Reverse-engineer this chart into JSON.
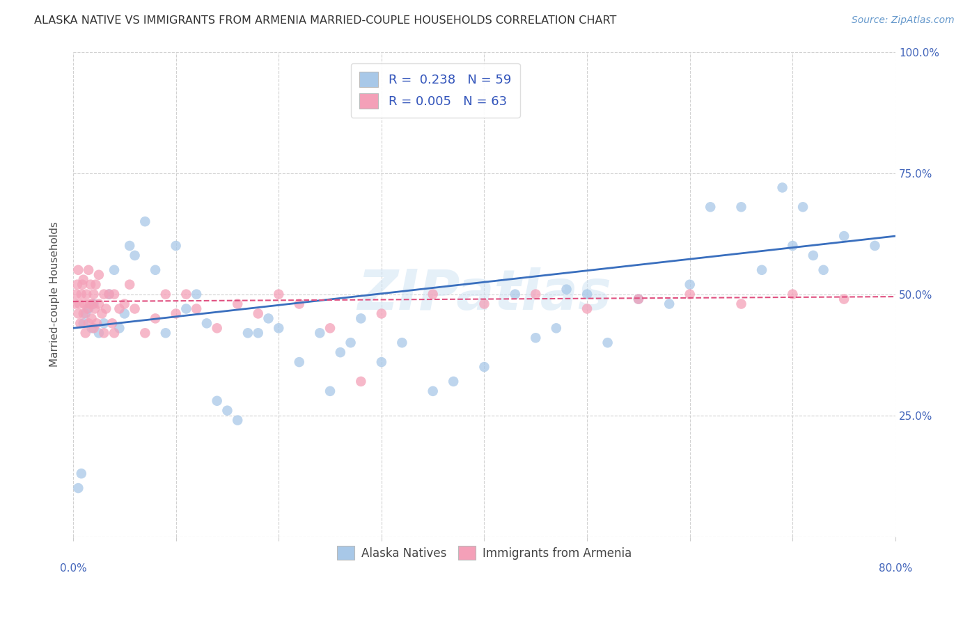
{
  "title": "ALASKA NATIVE VS IMMIGRANTS FROM ARMENIA MARRIED-COUPLE HOUSEHOLDS CORRELATION CHART",
  "source": "Source: ZipAtlas.com",
  "ylabel": "Married-couple Households",
  "legend1_label": "Alaska Natives",
  "legend2_label": "Immigrants from Armenia",
  "R1": 0.238,
  "N1": 59,
  "R2": 0.005,
  "N2": 63,
  "color_blue": "#a8c8e8",
  "color_pink": "#f4a0b8",
  "color_blue_line": "#3a6fbe",
  "color_pink_line": "#e05080",
  "watermark": "ZIPatlas",
  "xmin": 0.0,
  "xmax": 80.0,
  "ymin": 0.0,
  "ymax": 100.0,
  "blue_line_x0": 0.0,
  "blue_line_y0": 43.0,
  "blue_line_x1": 80.0,
  "blue_line_y1": 62.0,
  "pink_line_x0": 0.0,
  "pink_line_y0": 48.5,
  "pink_line_x1": 80.0,
  "pink_line_y1": 49.5,
  "blue_x": [
    0.5,
    0.8,
    1.0,
    1.2,
    1.5,
    1.8,
    2.0,
    2.5,
    3.0,
    3.5,
    4.0,
    4.5,
    5.0,
    5.5,
    6.0,
    7.0,
    8.0,
    9.0,
    10.0,
    11.0,
    12.0,
    13.0,
    14.0,
    15.0,
    16.0,
    17.0,
    18.0,
    19.0,
    20.0,
    22.0,
    24.0,
    25.0,
    26.0,
    27.0,
    28.0,
    30.0,
    32.0,
    35.0,
    37.0,
    40.0,
    43.0,
    45.0,
    47.0,
    48.0,
    50.0,
    52.0,
    55.0,
    58.0,
    60.0,
    62.0,
    65.0,
    67.0,
    69.0,
    70.0,
    71.0,
    72.0,
    73.0,
    75.0,
    78.0
  ],
  "blue_y": [
    10.0,
    13.0,
    44.0,
    46.0,
    47.0,
    43.0,
    48.0,
    42.0,
    44.0,
    50.0,
    55.0,
    43.0,
    46.0,
    60.0,
    58.0,
    65.0,
    55.0,
    42.0,
    60.0,
    47.0,
    50.0,
    44.0,
    28.0,
    26.0,
    24.0,
    42.0,
    42.0,
    45.0,
    43.0,
    36.0,
    42.0,
    30.0,
    38.0,
    40.0,
    45.0,
    36.0,
    40.0,
    30.0,
    32.0,
    35.0,
    50.0,
    41.0,
    43.0,
    51.0,
    50.0,
    40.0,
    49.0,
    48.0,
    52.0,
    68.0,
    68.0,
    55.0,
    72.0,
    60.0,
    68.0,
    58.0,
    55.0,
    62.0,
    60.0
  ],
  "pink_x": [
    0.2,
    0.3,
    0.4,
    0.5,
    0.5,
    0.6,
    0.7,
    0.8,
    0.9,
    1.0,
    1.0,
    1.1,
    1.2,
    1.3,
    1.4,
    1.5,
    1.5,
    1.6,
    1.7,
    1.8,
    1.9,
    2.0,
    2.0,
    2.1,
    2.2,
    2.3,
    2.5,
    2.5,
    2.8,
    3.0,
    3.0,
    3.2,
    3.5,
    3.8,
    4.0,
    4.0,
    4.5,
    5.0,
    5.5,
    6.0,
    7.0,
    8.0,
    9.0,
    10.0,
    11.0,
    12.0,
    14.0,
    16.0,
    18.0,
    20.0,
    22.0,
    25.0,
    28.0,
    30.0,
    35.0,
    40.0,
    45.0,
    50.0,
    55.0,
    60.0,
    65.0,
    70.0,
    75.0
  ],
  "pink_y": [
    48.0,
    50.0,
    52.0,
    46.0,
    55.0,
    48.0,
    44.0,
    50.0,
    52.0,
    46.0,
    53.0,
    48.0,
    42.0,
    50.0,
    47.0,
    55.0,
    44.0,
    48.0,
    52.0,
    45.0,
    48.0,
    50.0,
    43.0,
    47.0,
    52.0,
    44.0,
    48.0,
    54.0,
    46.0,
    42.0,
    50.0,
    47.0,
    50.0,
    44.0,
    42.0,
    50.0,
    47.0,
    48.0,
    52.0,
    47.0,
    42.0,
    45.0,
    50.0,
    46.0,
    50.0,
    47.0,
    43.0,
    48.0,
    46.0,
    50.0,
    48.0,
    43.0,
    32.0,
    46.0,
    50.0,
    48.0,
    50.0,
    47.0,
    49.0,
    50.0,
    48.0,
    50.0,
    49.0
  ]
}
